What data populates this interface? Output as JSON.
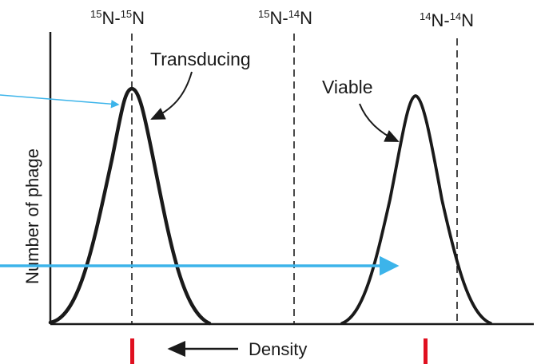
{
  "figure": {
    "column_labels": [
      {
        "mass_a": "15",
        "elem_a": "N",
        "mass_b": "15",
        "elem_b": "N"
      },
      {
        "mass_a": "15",
        "elem_a": "N",
        "mass_b": "14",
        "elem_b": "N"
      },
      {
        "mass_a": "14",
        "elem_a": "N",
        "mass_b": "14",
        "elem_b": "N"
      }
    ],
    "peak_labels": {
      "transducing": "Transducing",
      "viable": "Viable"
    },
    "y_axis_label": "Number of phage",
    "x_axis_label": "Density"
  },
  "colors": {
    "curve": "#1a1a1a",
    "annotation_arrow": "#3cb4ea",
    "marker": "#e01020"
  }
}
